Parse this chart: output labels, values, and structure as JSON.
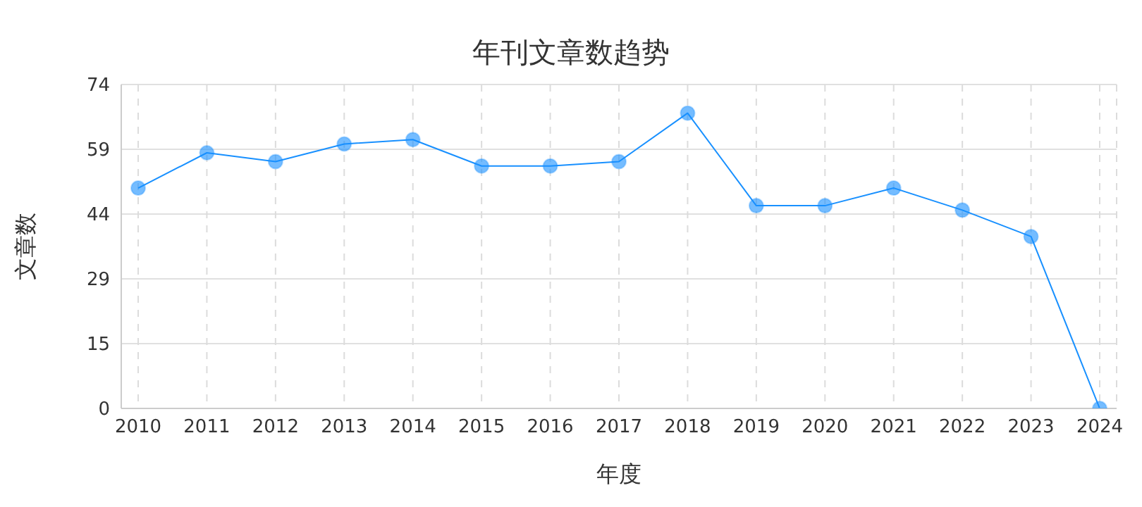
{
  "chart_data": {
    "type": "line",
    "title": "年刊文章数趋势",
    "xlabel": "年度",
    "ylabel": "文章数",
    "categories": [
      "2010",
      "2011",
      "2012",
      "2013",
      "2014",
      "2015",
      "2016",
      "2017",
      "2018",
      "2019",
      "2020",
      "2021",
      "2022",
      "2023",
      "2024"
    ],
    "series": [
      {
        "color": "#1890ff",
        "values": [
          50,
          58,
          56,
          60,
          61,
          55,
          55,
          56,
          67,
          46,
          46,
          50,
          45,
          39,
          0
        ]
      }
    ],
    "ylim": [
      0,
      73.5
    ],
    "yticks": [
      0,
      {
        "value": 14.7,
        "label": "15"
      },
      {
        "value": 29.4,
        "label": "29"
      },
      {
        "value": 44.1,
        "label": "44"
      },
      {
        "value": 58.8,
        "label": "59"
      },
      {
        "value": 73.5,
        "label": "74"
      }
    ],
    "grid": true,
    "marker": "circle",
    "line_style": "solid"
  }
}
